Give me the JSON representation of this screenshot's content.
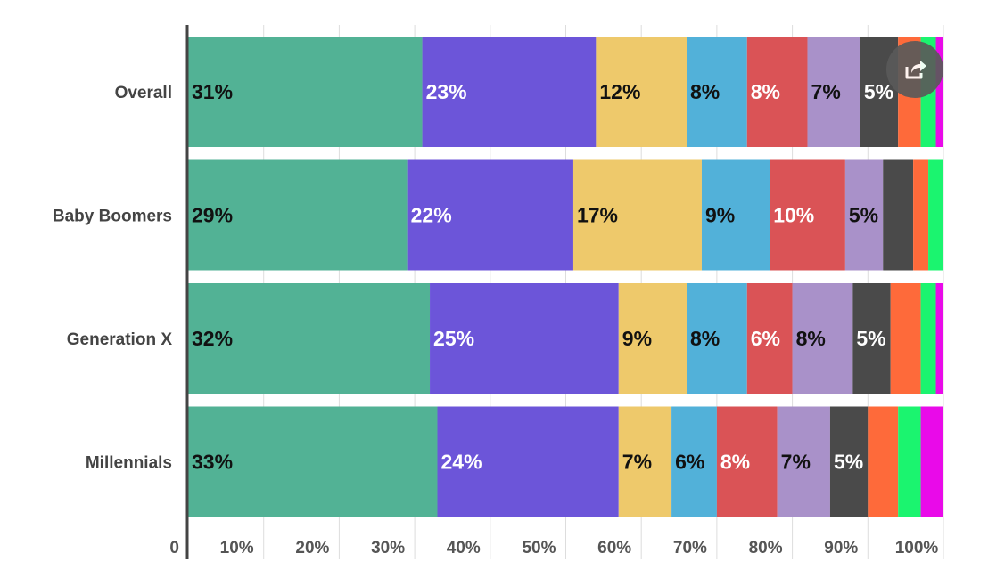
{
  "chart_data": {
    "type": "bar",
    "orientation": "horizontal",
    "stacked": true,
    "categories": [
      "Overall",
      "Baby Boomers",
      "Generation X",
      "Millennials"
    ],
    "series": [
      {
        "color": "#52b295",
        "values": [
          31,
          29,
          32,
          33
        ],
        "labels": [
          "31%",
          "29%",
          "32%",
          "33%"
        ],
        "label_color": "#111111"
      },
      {
        "color": "#6c55d9",
        "values": [
          23,
          22,
          25,
          24
        ],
        "labels": [
          "23%",
          "22%",
          "25%",
          "24%"
        ],
        "label_color": "#ffffff"
      },
      {
        "color": "#eec96b",
        "values": [
          12,
          17,
          9,
          7
        ],
        "labels": [
          "12%",
          "17%",
          "9%",
          "7%"
        ],
        "label_color": "#111111"
      },
      {
        "color": "#52b1d9",
        "values": [
          8,
          9,
          8,
          6
        ],
        "labels": [
          "8%",
          "9%",
          "8%",
          "6%"
        ],
        "label_color": "#111111"
      },
      {
        "color": "#da5356",
        "values": [
          8,
          10,
          6,
          8
        ],
        "labels": [
          "8%",
          "10%",
          "6%",
          "8%"
        ],
        "label_color": "#ffffff"
      },
      {
        "color": "#a991c9",
        "values": [
          7,
          5,
          8,
          7
        ],
        "labels": [
          "7%",
          "5%",
          "8%",
          "7%"
        ],
        "label_color": "#111111"
      },
      {
        "color": "#4a4a4a",
        "values": [
          5,
          4,
          5,
          5
        ],
        "labels": [
          "5%",
          "",
          "5%",
          "5%"
        ],
        "label_color": "#ffffff"
      },
      {
        "color": "#fe6a3a",
        "values": [
          3,
          2,
          4,
          4
        ],
        "labels": [
          "",
          "",
          "",
          ""
        ],
        "label_color": "#ffffff"
      },
      {
        "color": "#1bf46f",
        "values": [
          2,
          2,
          2,
          3
        ],
        "labels": [
          "",
          "",
          "",
          ""
        ],
        "label_color": "#111111"
      },
      {
        "color": "#e90ae9",
        "values": [
          1,
          0,
          1,
          3
        ],
        "labels": [
          "",
          "",
          "",
          ""
        ],
        "label_color": "#ffffff"
      }
    ],
    "x_ticks": [
      "0",
      "10%",
      "20%",
      "30%",
      "40%",
      "50%",
      "60%",
      "70%",
      "80%",
      "90%",
      "100%"
    ],
    "xlim": [
      0,
      100
    ],
    "grid": true,
    "legend": "none"
  },
  "share_icon": "share-icon"
}
